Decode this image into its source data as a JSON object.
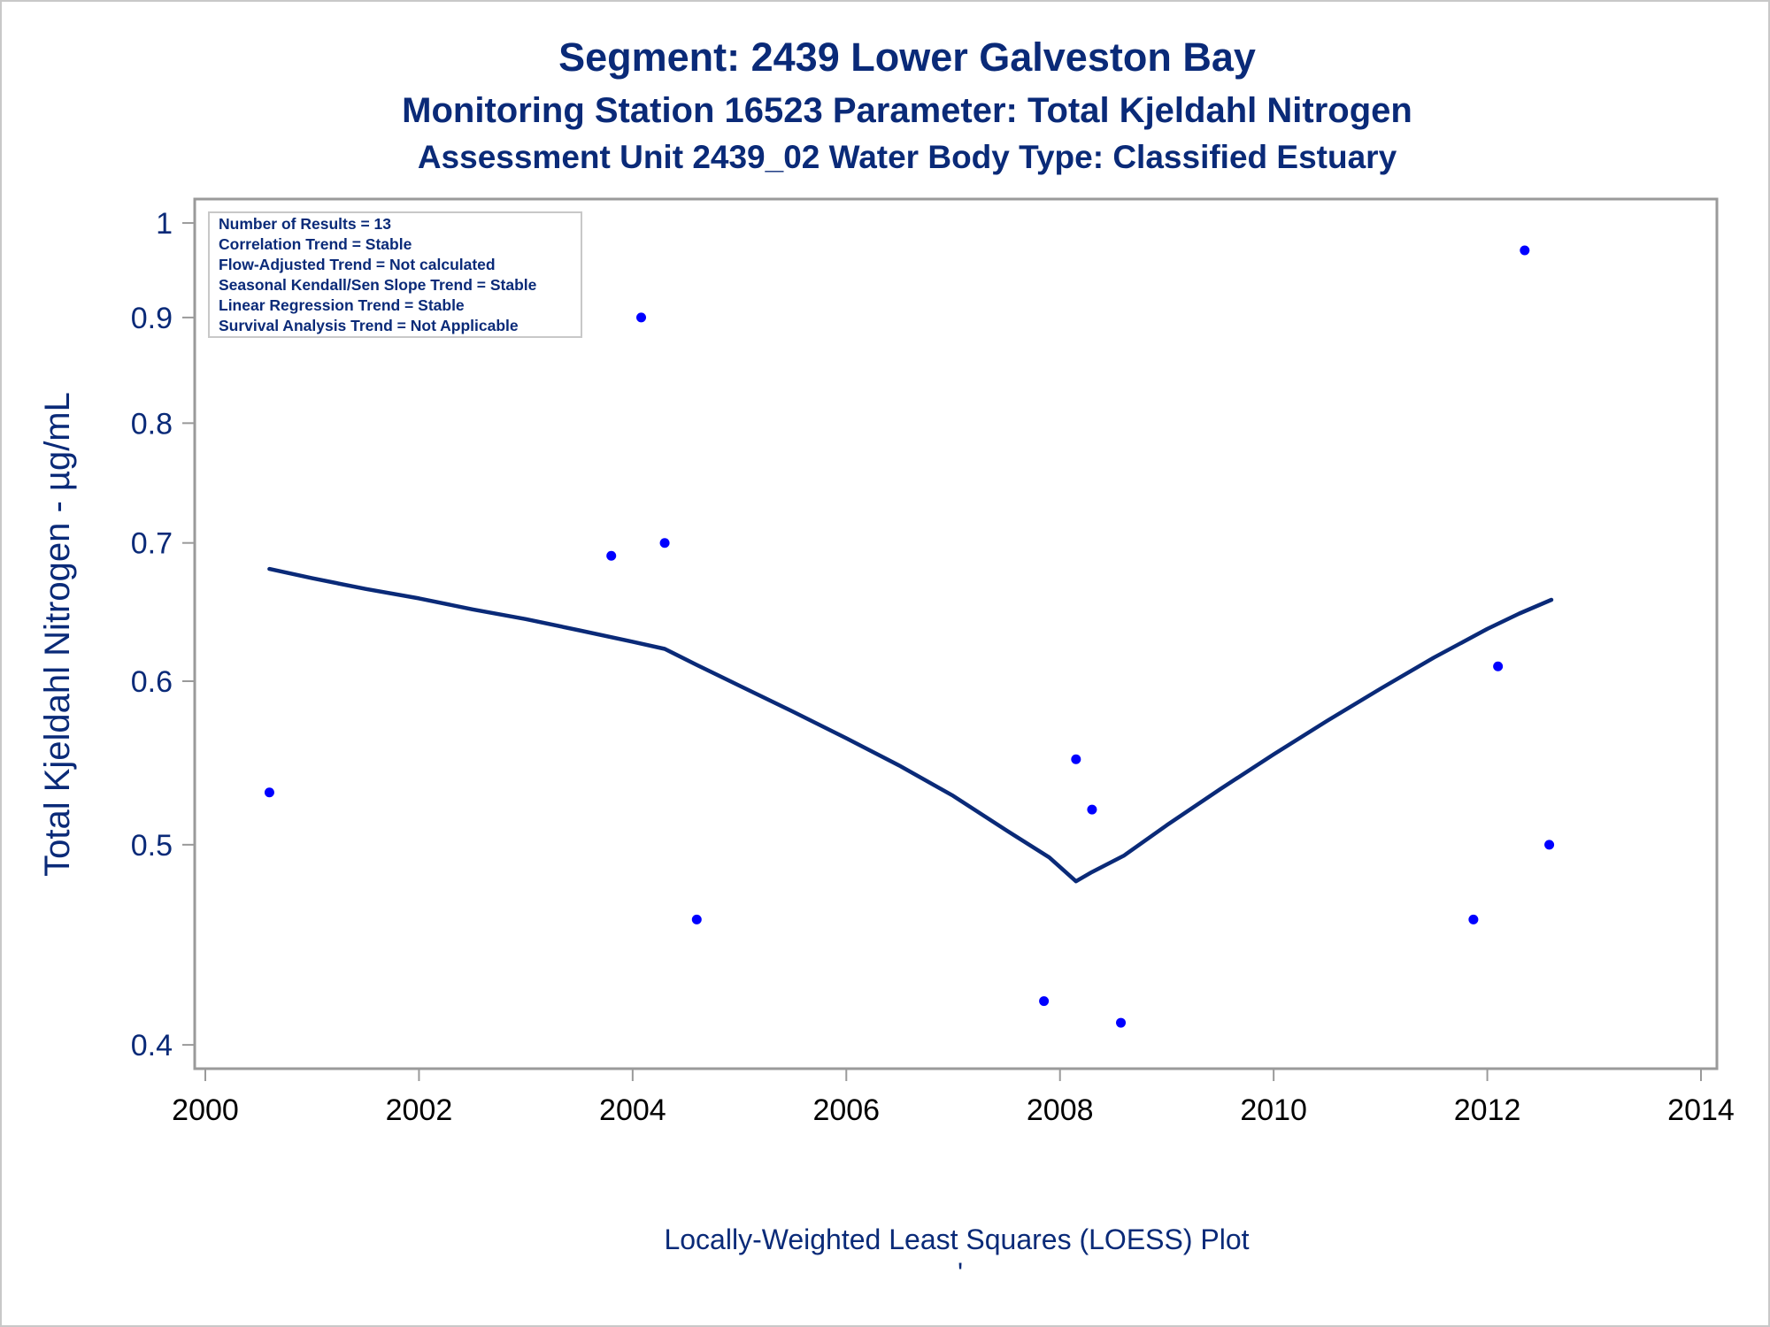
{
  "chart_data": {
    "type": "scatter",
    "title": "Segment: 2439  Lower Galveston Bay",
    "subtitle": "Monitoring Station 16523 Parameter: Total Kjeldahl Nitrogen",
    "subtitle2": "Assessment Unit 2439_02   Water Body Type: Classified Estuary",
    "xlabel": "Locally-Weighted Least Squares (LOESS) Plot",
    "footer_mark": "'",
    "ylabel": "Total Kjeldahl Nitrogen -  µg/mL",
    "yscale": "log",
    "xlim": [
      2000,
      2014
    ],
    "ylim": [
      0.393,
      1.02
    ],
    "grid": false,
    "x_ticks": [
      2000,
      2002,
      2004,
      2006,
      2008,
      2010,
      2012,
      2014
    ],
    "x_tick_labels": [
      "2000",
      "2002",
      "2004",
      "2006",
      "2008",
      "2010",
      "2012",
      "2014"
    ],
    "y_ticks": [
      0.4,
      0.5,
      0.6,
      0.7,
      0.8,
      0.9,
      1
    ],
    "y_tick_labels": [
      "0.4",
      "0.5",
      "0.6",
      "0.7",
      "0.8",
      "0.9",
      "1"
    ],
    "legend_position": "top-left",
    "stats_box": [
      "Number of Results = 13",
      "Correlation Trend = Stable",
      "Flow-Adjusted Trend = Not calculated",
      "Seasonal Kendall/Sen Slope Trend = Stable",
      "Linear Regression Trend = Stable",
      "Survival Analysis Trend = Not Applicable"
    ],
    "series": [
      {
        "name": "Observations",
        "kind": "scatter",
        "color": "#0000ff",
        "x": [
          2000.6,
          2003.8,
          2004.08,
          2004.3,
          2004.6,
          2007.85,
          2008.15,
          2008.3,
          2008.57,
          2011.87,
          2012.1,
          2012.35,
          2012.58
        ],
        "y": [
          0.53,
          0.69,
          0.9,
          0.7,
          0.46,
          0.42,
          0.55,
          0.52,
          0.41,
          0.46,
          0.61,
          0.97,
          0.5
        ]
      },
      {
        "name": "LOESS",
        "kind": "line",
        "color": "#0a2a78",
        "x": [
          2000.6,
          2001.0,
          2001.5,
          2002.0,
          2002.5,
          2003.0,
          2003.5,
          2004.0,
          2004.3,
          2004.6,
          2005.0,
          2005.5,
          2006.0,
          2006.5,
          2007.0,
          2007.5,
          2007.9,
          2008.15,
          2008.3,
          2008.6,
          2009.0,
          2009.5,
          2010.0,
          2010.5,
          2011.0,
          2011.5,
          2012.0,
          2012.3,
          2012.6
        ],
        "y": [
          0.68,
          0.673,
          0.665,
          0.658,
          0.65,
          0.643,
          0.635,
          0.627,
          0.622,
          0.611,
          0.597,
          0.58,
          0.563,
          0.546,
          0.528,
          0.508,
          0.493,
          0.48,
          0.485,
          0.494,
          0.511,
          0.532,
          0.553,
          0.574,
          0.595,
          0.616,
          0.636,
          0.647,
          0.657
        ]
      }
    ]
  }
}
